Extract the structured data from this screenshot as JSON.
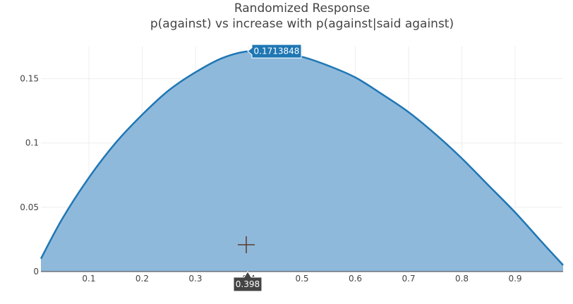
{
  "chart_data": {
    "type": "area",
    "title": "Randomized Response",
    "subtitle": "p(against) vs increase with p(against|said against)",
    "xlabel": "",
    "ylabel": "",
    "xlim": [
      0.01,
      0.99
    ],
    "ylim": [
      0,
      0.175
    ],
    "x_ticks": [
      "0.1",
      "0.2",
      "0.3",
      "0.4",
      "0.5",
      "0.6",
      "0.7",
      "0.8",
      "0.9"
    ],
    "y_ticks": [
      "0",
      "0.05",
      "0.1",
      "0.15"
    ],
    "grid": true,
    "series": [
      {
        "x": [
          0.01,
          0.05,
          0.1,
          0.15,
          0.2,
          0.25,
          0.3,
          0.35,
          0.4,
          0.45,
          0.5,
          0.55,
          0.6,
          0.65,
          0.7,
          0.75,
          0.8,
          0.85,
          0.9,
          0.95,
          0.99
        ],
        "y": [
          0.01,
          0.041,
          0.073,
          0.1,
          0.122,
          0.141,
          0.155,
          0.166,
          0.1713848,
          0.17,
          0.167,
          0.16,
          0.151,
          0.138,
          0.124,
          0.107,
          0.088,
          0.067,
          0.046,
          0.023,
          0.005
        ],
        "color": "#1f77b4",
        "fill_color": "#8fb9db"
      }
    ],
    "hover": {
      "x_label": "0.398",
      "y_label": "0.1713848"
    }
  },
  "colors": {
    "line": "#1f77b4",
    "fill": "#8fb9db",
    "grid": "#eeeeee",
    "axis_line": "#444444",
    "hover_y_bg": "#1f77b4",
    "hover_x_bg": "#444444",
    "crosshair": "#5a3a2a"
  }
}
